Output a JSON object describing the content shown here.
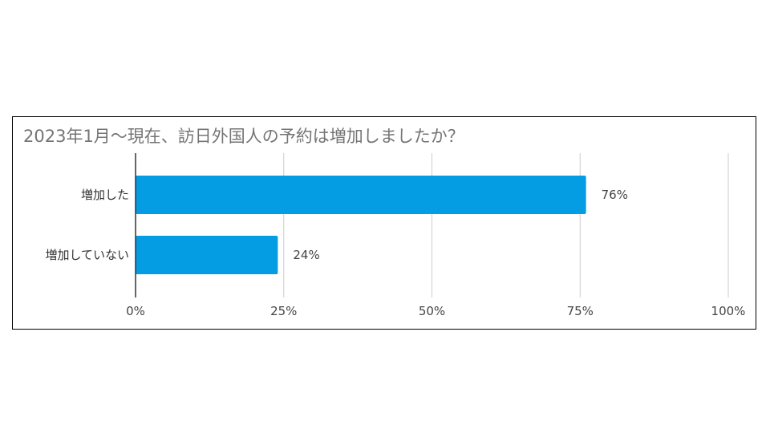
{
  "colors": {
    "bar": "#049CE2",
    "grid": "#cccccc",
    "axis": "#333333",
    "title": "#757575"
  },
  "chart_data": {
    "type": "bar",
    "orientation": "horizontal",
    "title": "2023年1月～現在、訪日外国人の予約は増加しましたか？",
    "categories": [
      "増加した",
      "増加していない"
    ],
    "values": [
      76,
      24
    ],
    "data_labels": [
      "76%",
      "24%"
    ],
    "xlim": [
      0,
      100
    ],
    "xticks": [
      0,
      25,
      50,
      75,
      100
    ],
    "xtick_labels": [
      "0%",
      "25%",
      "50%",
      "75%",
      "100%"
    ],
    "xlabel": "",
    "ylabel": "",
    "grid": true,
    "legend": "none"
  }
}
